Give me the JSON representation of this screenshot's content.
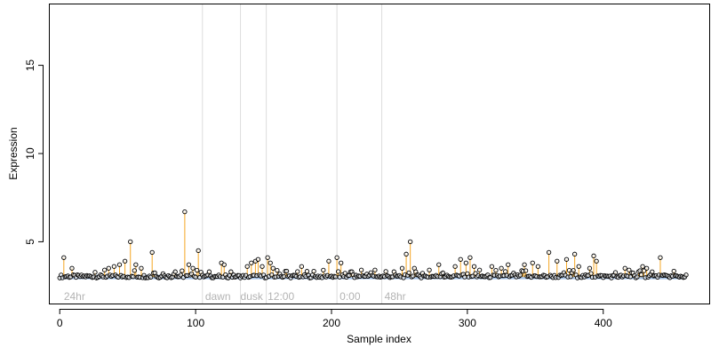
{
  "chart_data": {
    "type": "scatter",
    "xlabel": "Sample index",
    "ylabel": "Expression",
    "xlim": [
      -8,
      478
    ],
    "ylim": [
      1.5,
      18.5
    ],
    "x_ticks": [
      0,
      100,
      200,
      300,
      400
    ],
    "y_ticks": [
      5,
      10,
      15
    ],
    "baseline": 3.0,
    "grid": false,
    "colors": {
      "baseline": "#a8c4e8",
      "stems": "#f5a623",
      "points": "#000000",
      "segment_lines": "#dddddd",
      "segment_labels": "#b3b3b3"
    },
    "segment_lines_x": [
      105,
      133,
      152,
      204,
      237
    ],
    "segment_labels": [
      {
        "text": "24hr",
        "x": 3
      },
      {
        "text": "dawn",
        "x": 107
      },
      {
        "text": "dusk",
        "x": 133
      },
      {
        "text": "12:00",
        "x": 153
      },
      {
        "text": "0:00",
        "x": 206
      },
      {
        "text": "48hr",
        "x": 239
      }
    ],
    "spikes": [
      {
        "x": 3,
        "y": 4.1
      },
      {
        "x": 9,
        "y": 3.5
      },
      {
        "x": 33,
        "y": 3.4
      },
      {
        "x": 36,
        "y": 3.5
      },
      {
        "x": 40,
        "y": 3.6
      },
      {
        "x": 44,
        "y": 3.7
      },
      {
        "x": 48,
        "y": 3.9
      },
      {
        "x": 52,
        "y": 5.0
      },
      {
        "x": 56,
        "y": 3.7
      },
      {
        "x": 60,
        "y": 3.5
      },
      {
        "x": 68,
        "y": 4.4
      },
      {
        "x": 85,
        "y": 3.3
      },
      {
        "x": 92,
        "y": 6.7
      },
      {
        "x": 95,
        "y": 3.7
      },
      {
        "x": 98,
        "y": 3.5
      },
      {
        "x": 102,
        "y": 4.5
      },
      {
        "x": 110,
        "y": 3.3
      },
      {
        "x": 119,
        "y": 3.8
      },
      {
        "x": 121,
        "y": 3.7
      },
      {
        "x": 126,
        "y": 3.3
      },
      {
        "x": 138,
        "y": 3.6
      },
      {
        "x": 141,
        "y": 3.8
      },
      {
        "x": 144,
        "y": 3.9
      },
      {
        "x": 146,
        "y": 4.0
      },
      {
        "x": 149,
        "y": 3.6
      },
      {
        "x": 153,
        "y": 4.1
      },
      {
        "x": 155,
        "y": 3.8
      },
      {
        "x": 157,
        "y": 3.5
      },
      {
        "x": 178,
        "y": 3.6
      },
      {
        "x": 198,
        "y": 3.9
      },
      {
        "x": 204,
        "y": 4.1
      },
      {
        "x": 207,
        "y": 3.8
      },
      {
        "x": 215,
        "y": 3.3
      },
      {
        "x": 222,
        "y": 3.4
      },
      {
        "x": 232,
        "y": 3.4
      },
      {
        "x": 246,
        "y": 3.3
      },
      {
        "x": 252,
        "y": 3.5
      },
      {
        "x": 255,
        "y": 4.3
      },
      {
        "x": 258,
        "y": 5.0
      },
      {
        "x": 261,
        "y": 3.5
      },
      {
        "x": 272,
        "y": 3.4
      },
      {
        "x": 279,
        "y": 3.7
      },
      {
        "x": 291,
        "y": 3.6
      },
      {
        "x": 295,
        "y": 4.0
      },
      {
        "x": 299,
        "y": 3.8
      },
      {
        "x": 302,
        "y": 4.1
      },
      {
        "x": 305,
        "y": 3.6
      },
      {
        "x": 309,
        "y": 3.4
      },
      {
        "x": 318,
        "y": 3.6
      },
      {
        "x": 325,
        "y": 3.5
      },
      {
        "x": 330,
        "y": 3.7
      },
      {
        "x": 342,
        "y": 3.7
      },
      {
        "x": 348,
        "y": 3.8
      },
      {
        "x": 352,
        "y": 3.6
      },
      {
        "x": 360,
        "y": 4.4
      },
      {
        "x": 366,
        "y": 3.9
      },
      {
        "x": 373,
        "y": 4.0
      },
      {
        "x": 379,
        "y": 4.3
      },
      {
        "x": 382,
        "y": 3.6
      },
      {
        "x": 390,
        "y": 3.5
      },
      {
        "x": 393,
        "y": 4.2
      },
      {
        "x": 395,
        "y": 3.9
      },
      {
        "x": 416,
        "y": 3.5
      },
      {
        "x": 419,
        "y": 3.4
      },
      {
        "x": 429,
        "y": 3.6
      },
      {
        "x": 432,
        "y": 3.5
      },
      {
        "x": 442,
        "y": 4.1
      }
    ],
    "n_points": 462
  }
}
